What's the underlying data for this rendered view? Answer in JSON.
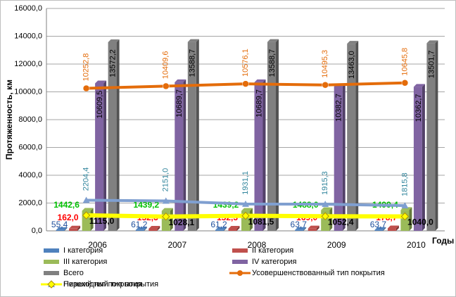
{
  "chart_data": {
    "type": "bar-line",
    "categories": [
      "2006",
      "2007",
      "2008",
      "2009",
      "2010"
    ],
    "ylabel": "Протяженность, км",
    "xlabel": "Годы",
    "ylim": [
      0,
      16000
    ],
    "yticks": [
      {
        "value": 0,
        "label": "0,0"
      },
      {
        "value": 2000,
        "label": "2000,0"
      },
      {
        "value": 4000,
        "label": "4000,0"
      },
      {
        "value": 6000,
        "label": "6000,0"
      },
      {
        "value": 8000,
        "label": "8000,0"
      },
      {
        "value": 10000,
        "label": "10000,0"
      },
      {
        "value": 12000,
        "label": "12000,0"
      },
      {
        "value": 14000,
        "label": "14000,0"
      },
      {
        "value": 16000,
        "label": "16000,0"
      }
    ],
    "grid": true,
    "series": [
      {
        "name": "I категория",
        "kind": "bar",
        "color": "#4f81bd",
        "label_color": "#1f4e9c",
        "values": [
          55.4,
          61.2,
          61.2,
          63.7,
          63.7
        ],
        "value_labels": [
          "55,4",
          "61,2",
          "61,2",
          "63,7",
          "63,7"
        ]
      },
      {
        "name": "II категория",
        "kind": "bar",
        "color": "#c0504d",
        "label_color": "#ff0000",
        "values": [
          162.0,
          152.3,
          152.3,
          169.0,
          178.7
        ],
        "value_labels": [
          "162,0",
          "152,3",
          "152,3",
          "169,0",
          "178,7"
        ]
      },
      {
        "name": "III категория",
        "kind": "bar",
        "color": "#9bbb59",
        "label_color": "#00c000",
        "values": [
          1442.6,
          1439.2,
          1439.2,
          1488.0,
          1499.4
        ],
        "value_labels": [
          "1442,6",
          "1439,2",
          "1439,2",
          "1488,0",
          "1499,4"
        ]
      },
      {
        "name": "IV категория",
        "kind": "bar",
        "color": "#8064a2",
        "label_color": "#000000",
        "values": [
          10609.5,
          10689.7,
          10689.7,
          10382.7,
          10362.7
        ],
        "value_labels": [
          "10609,5",
          "10689,7",
          "10689,7",
          "10382,7",
          "10362,7"
        ]
      },
      {
        "name": "Всего",
        "kind": "bar",
        "color": "#808080",
        "label_color": "#000000",
        "values": [
          13572.2,
          13588.7,
          13588.7,
          13463.0,
          13501.7
        ],
        "value_labels": [
          "13572,2",
          "13588,7",
          "13588,7",
          "13463,0",
          "13501,7"
        ]
      },
      {
        "name": "Усовершенствованный тип покрытия",
        "kind": "line",
        "marker": "circle",
        "color": "#e46c0a",
        "label_color": "#e46c0a",
        "values": [
          10252.8,
          10409.6,
          10576.1,
          10495.3,
          10645.8
        ],
        "value_labels": [
          "10252,8",
          "10409,6",
          "10576,1",
          "10495,3",
          "10645,8"
        ]
      },
      {
        "name": "Переходный тип покрытия",
        "kind": "line",
        "marker": "triangle",
        "color": "#7f9fd0",
        "label_color": "#31859c",
        "values": [
          2204.4,
          2151.0,
          1931.1,
          1915.3,
          1815.8
        ],
        "value_labels": [
          "2204,4",
          "2151,0",
          "1931,1",
          "1915,3",
          "1815,8"
        ]
      },
      {
        "name": "Низший тип покрытия",
        "kind": "line",
        "marker": "diamond",
        "color": "#ffff00",
        "label_color": "#000000",
        "values": [
          1115.0,
          1028.1,
          1081.5,
          1052.4,
          1040.0
        ],
        "value_labels": [
          "1115,0",
          "1028,1",
          "1081,5",
          "1052,4",
          "1040,0"
        ]
      }
    ]
  }
}
